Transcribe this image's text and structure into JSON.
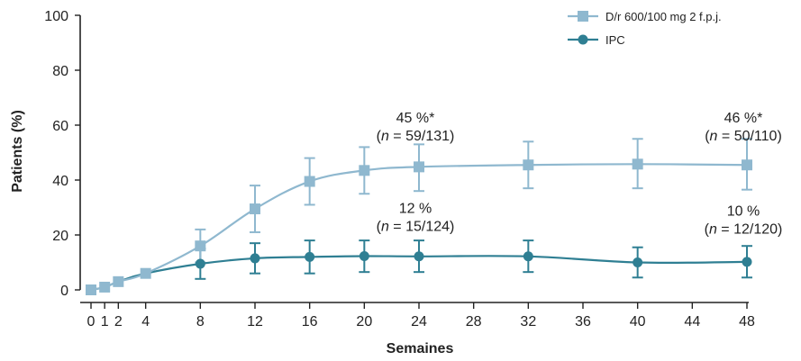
{
  "chart_data": {
    "type": "line",
    "xlabel": "Semaines",
    "ylabel": "Patients (%)",
    "xlim": [
      0,
      48
    ],
    "ylim": [
      0,
      100
    ],
    "x_ticks": [
      0,
      1,
      2,
      4,
      8,
      12,
      16,
      20,
      24,
      28,
      32,
      36,
      40,
      44,
      48
    ],
    "y_ticks": [
      0,
      20,
      40,
      60,
      80,
      100
    ],
    "grid": false,
    "legend_position": "top-right",
    "series": [
      {
        "name": "D/r 600/100 mg 2 f.p.j.",
        "color": "#8fb8cf",
        "marker": "square",
        "points": [
          {
            "x": 0,
            "y": 0,
            "lo": null,
            "hi": null
          },
          {
            "x": 1,
            "y": 1,
            "lo": null,
            "hi": null
          },
          {
            "x": 2,
            "y": 3,
            "lo": null,
            "hi": null
          },
          {
            "x": 4,
            "y": 6,
            "lo": null,
            "hi": null
          },
          {
            "x": 8,
            "y": 16,
            "lo": 10,
            "hi": 22
          },
          {
            "x": 12,
            "y": 29.5,
            "lo": 21,
            "hi": 38
          },
          {
            "x": 16,
            "y": 39.5,
            "lo": 31,
            "hi": 48
          },
          {
            "x": 20,
            "y": 43.5,
            "lo": 35,
            "hi": 52
          },
          {
            "x": 24,
            "y": 44.8,
            "lo": 36,
            "hi": 53
          },
          {
            "x": 32,
            "y": 45.5,
            "lo": 37,
            "hi": 54
          },
          {
            "x": 40,
            "y": 45.8,
            "lo": 37,
            "hi": 55
          },
          {
            "x": 48,
            "y": 45.5,
            "lo": 36.5,
            "hi": 55
          }
        ]
      },
      {
        "name": "IPC",
        "color": "#2f7f93",
        "marker": "circle",
        "points": [
          {
            "x": 0,
            "y": 0,
            "lo": null,
            "hi": null
          },
          {
            "x": 1,
            "y": 1,
            "lo": null,
            "hi": null
          },
          {
            "x": 2,
            "y": 3,
            "lo": null,
            "hi": null
          },
          {
            "x": 4,
            "y": 6,
            "lo": null,
            "hi": null
          },
          {
            "x": 8,
            "y": 9.5,
            "lo": 4,
            "hi": 15
          },
          {
            "x": 12,
            "y": 11.5,
            "lo": 6,
            "hi": 17
          },
          {
            "x": 16,
            "y": 12,
            "lo": 6,
            "hi": 18
          },
          {
            "x": 20,
            "y": 12.3,
            "lo": 6.5,
            "hi": 18
          },
          {
            "x": 24,
            "y": 12.2,
            "lo": 6.5,
            "hi": 18
          },
          {
            "x": 32,
            "y": 12.2,
            "lo": 6.5,
            "hi": 18
          },
          {
            "x": 40,
            "y": 10,
            "lo": 4.5,
            "hi": 15.5
          },
          {
            "x": 48,
            "y": 10.2,
            "lo": 4.5,
            "hi": 16
          }
        ]
      }
    ],
    "annotations": [
      {
        "at_x": 24,
        "at_y": 61,
        "line1": "45 %*",
        "line2_italic": "n",
        "line2_rest": " = 59/131)"
      },
      {
        "at_x": 48,
        "at_y": 61,
        "line1": "46 %*",
        "line2_italic": "n",
        "line2_rest": " = 50/110)"
      },
      {
        "at_x": 24,
        "at_y": 28,
        "line1": "12 %",
        "line2_italic": "n",
        "line2_rest": " = 15/124)"
      },
      {
        "at_x": 48,
        "at_y": 27,
        "line1": "10 %",
        "line2_italic": "n",
        "line2_rest": " = 12/120)"
      }
    ]
  }
}
